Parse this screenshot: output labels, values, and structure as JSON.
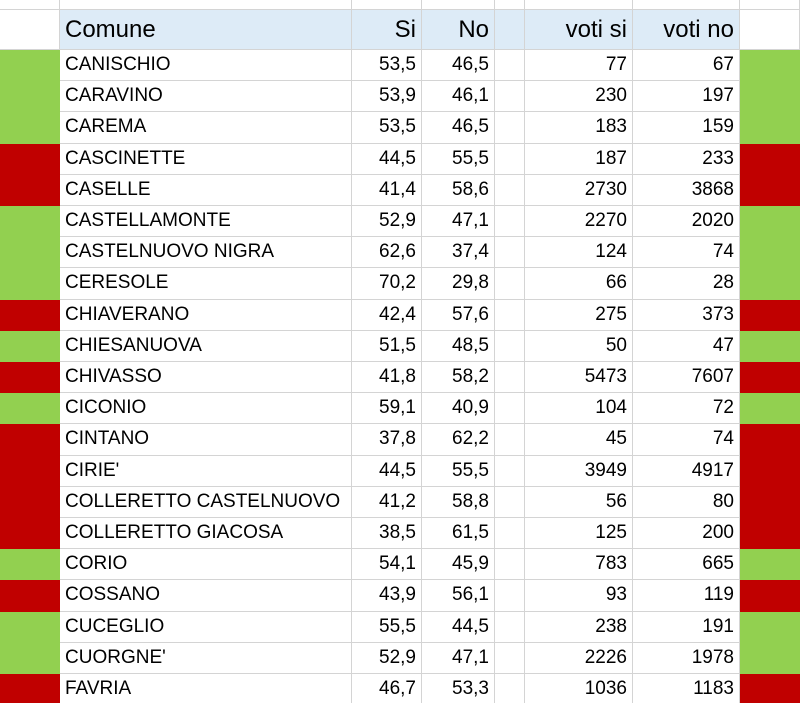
{
  "table": {
    "header": [
      "Comune",
      "Si",
      "No",
      "voti si",
      "voti no"
    ],
    "rows": [
      [
        "CANISCHIO",
        "53,5",
        "46,5",
        "77",
        "67"
      ],
      [
        "CARAVINO",
        "53,9",
        "46,1",
        "230",
        "197"
      ],
      [
        "CAREMA",
        "53,5",
        "46,5",
        "183",
        "159"
      ],
      [
        "CASCINETTE",
        "44,5",
        "55,5",
        "187",
        "233"
      ],
      [
        "CASELLE",
        "41,4",
        "58,6",
        "2730",
        "3868"
      ],
      [
        "CASTELLAMONTE",
        "52,9",
        "47,1",
        "2270",
        "2020"
      ],
      [
        "CASTELNUOVO NIGRA",
        "62,6",
        "37,4",
        "124",
        "74"
      ],
      [
        "CERESOLE",
        "70,2",
        "29,8",
        "66",
        "28"
      ],
      [
        "CHIAVERANO",
        "42,4",
        "57,6",
        "275",
        "373"
      ],
      [
        "CHIESANUOVA",
        "51,5",
        "48,5",
        "50",
        "47"
      ],
      [
        "CHIVASSO",
        "41,8",
        "58,2",
        "5473",
        "7607"
      ],
      [
        "CICONIO",
        "59,1",
        "40,9",
        "104",
        "72"
      ],
      [
        "CINTANO",
        "37,8",
        "62,2",
        "45",
        "74"
      ],
      [
        "CIRIE'",
        "44,5",
        "55,5",
        "3949",
        "4917"
      ],
      [
        "COLLERETTO CASTELNUOVO",
        "41,2",
        "58,8",
        "56",
        "80"
      ],
      [
        "COLLERETTO GIACOSA",
        "38,5",
        "61,5",
        "125",
        "200"
      ],
      [
        "CORIO",
        "54,1",
        "45,9",
        "783",
        "665"
      ],
      [
        "COSSANO",
        "43,9",
        "56,1",
        "93",
        "119"
      ],
      [
        "CUCEGLIO",
        "55,5",
        "44,5",
        "238",
        "191"
      ],
      [
        "CUORGNE'",
        "52,9",
        "47,1",
        "2226",
        "1978"
      ],
      [
        "FAVRIA",
        "46,7",
        "53,3",
        "1036",
        "1183"
      ]
    ],
    "row_colors": [
      "#92d050",
      "#92d050",
      "#92d050",
      "#c00000",
      "#c00000",
      "#92d050",
      "#92d050",
      "#92d050",
      "#c00000",
      "#92d050",
      "#c00000",
      "#92d050",
      "#c00000",
      "#c00000",
      "#c00000",
      "#c00000",
      "#92d050",
      "#c00000",
      "#92d050",
      "#92d050",
      "#c00000"
    ]
  }
}
